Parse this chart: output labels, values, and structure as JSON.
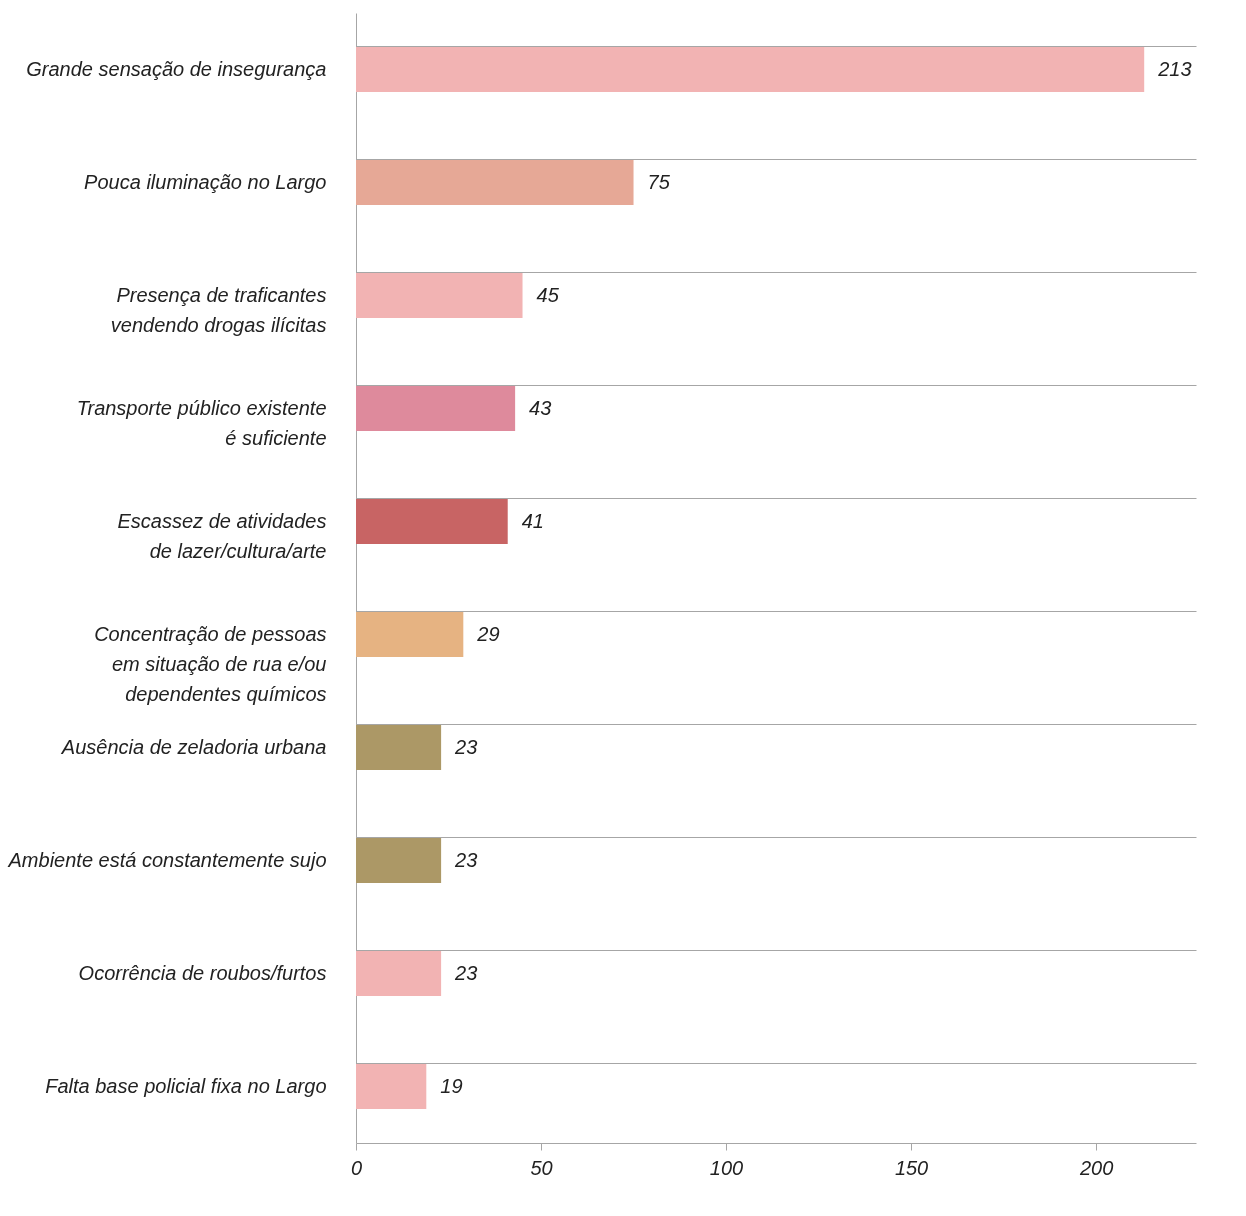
{
  "chart_data": {
    "type": "bar",
    "orientation": "horizontal",
    "categories": [
      "Grande sensação de insegurança",
      "Pouca iluminação no Largo",
      "Presença de traficantes\nvendendo drogas ilícitas",
      "Transporte público existente\né suficiente",
      "Escassez de atividades\nde lazer/cultura/arte",
      "Concentração de pessoas\nem situação de rua e/ou\ndependentes químicos",
      "Ausência de zeladoria urbana",
      "Ambiente está constantemente sujo",
      "Ocorrência de roubos/furtos",
      "Falta base policial fixa no Largo"
    ],
    "values": [
      213,
      75,
      45,
      43,
      41,
      29,
      23,
      23,
      23,
      19
    ],
    "colors": [
      "#f2b3b3",
      "#e6a896",
      "#f2b3b3",
      "#de8a9c",
      "#c86464",
      "#e6b382",
      "#ac9866",
      "#ac9866",
      "#f2b3b3",
      "#f2b3b3"
    ],
    "xlim": [
      0,
      227
    ],
    "xticks": [
      0,
      50,
      100,
      150,
      200
    ],
    "data_labels": true,
    "grid": "y"
  }
}
